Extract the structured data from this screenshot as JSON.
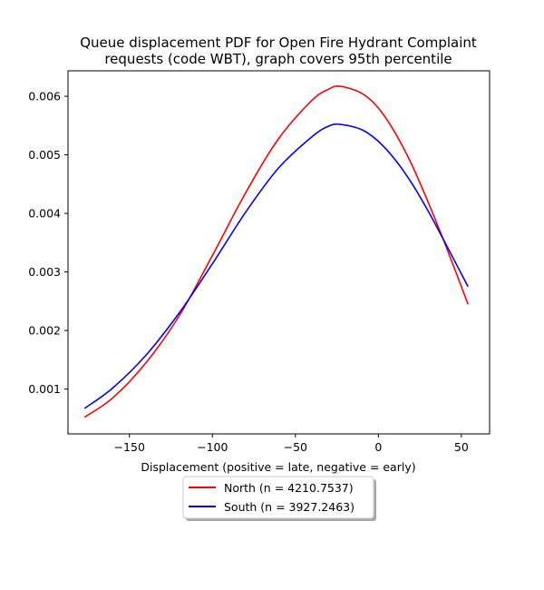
{
  "chart_data": {
    "type": "line",
    "title_lines": [
      "Queue displacement PDF for Open Fire Hydrant Complaint",
      "requests (code WBT), graph covers 95th percentile"
    ],
    "xlabel": "Displacement (positive = late, negative = early)",
    "ylabel": "",
    "xlim": [
      -187,
      67
    ],
    "ylim": [
      0.000235,
      0.006435
    ],
    "xticks": [
      -150,
      -100,
      -50,
      0,
      50
    ],
    "xtick_labels": [
      "−150",
      "−100",
      "−50",
      "0",
      "50"
    ],
    "yticks": [
      0.001,
      0.002,
      0.003,
      0.004,
      0.005,
      0.006
    ],
    "ytick_labels": [
      "0.001",
      "0.002",
      "0.003",
      "0.004",
      "0.005",
      "0.006"
    ],
    "grid": false,
    "legend_position": "below plot, centered",
    "series": [
      {
        "name": "North (n = 4210.7537)",
        "color": "#ff0000",
        "x": [
          -177,
          -160,
          -140,
          -120,
          -100,
          -80,
          -60,
          -40,
          -30,
          -23,
          -10,
          0,
          10,
          20,
          30,
          40,
          54
        ],
        "y": [
          0.00052,
          0.00085,
          0.00145,
          0.00225,
          0.00328,
          0.00435,
          0.00528,
          0.00593,
          0.00612,
          0.00617,
          0.00605,
          0.0058,
          0.00538,
          0.00484,
          0.00419,
          0.00349,
          0.00245
        ]
      },
      {
        "name": "South (n = 3927.2463)",
        "color": "#0000ff",
        "x": [
          -177,
          -160,
          -140,
          -120,
          -100,
          -80,
          -60,
          -40,
          -30,
          -23,
          -10,
          0,
          10,
          20,
          30,
          40,
          54
        ],
        "y": [
          0.00067,
          0.00102,
          0.00158,
          0.0023,
          0.00314,
          0.00402,
          0.00478,
          0.00531,
          0.00549,
          0.00552,
          0.00543,
          0.00523,
          0.00492,
          0.00452,
          0.00404,
          0.00351,
          0.00275
        ]
      }
    ]
  }
}
